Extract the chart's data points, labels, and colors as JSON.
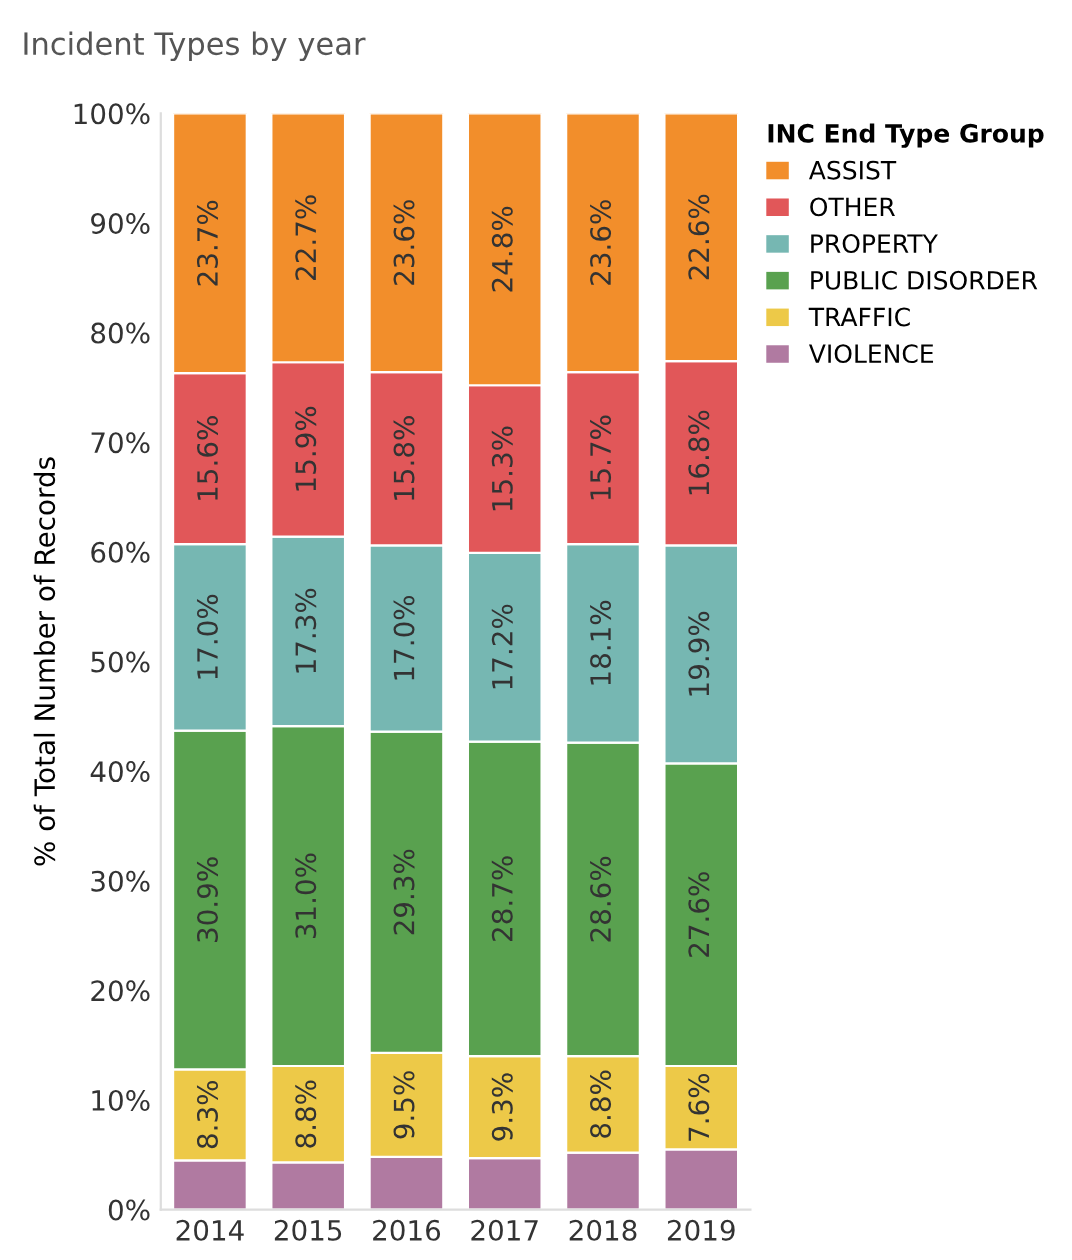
{
  "chart_data": {
    "type": "bar",
    "stacked": true,
    "title": "Incident Types by year",
    "ylabel": "% of Total Number of Records",
    "legend_title": "INC End Type Group",
    "legend": "top right",
    "categories": [
      "2014",
      "2015",
      "2016",
      "2017",
      "2018",
      "2019"
    ],
    "ylim": [
      0,
      100
    ],
    "yticks": [
      {
        "value": 0,
        "label": "0%"
      },
      {
        "value": 10,
        "label": "10%"
      },
      {
        "value": 20,
        "label": "20%"
      },
      {
        "value": 30,
        "label": "30%"
      },
      {
        "value": 40,
        "label": "40%"
      },
      {
        "value": 50,
        "label": "50%"
      },
      {
        "value": 60,
        "label": "60%"
      },
      {
        "value": 70,
        "label": "70%"
      },
      {
        "value": 80,
        "label": "80%"
      },
      {
        "value": 90,
        "label": "90%"
      },
      {
        "value": 100,
        "label": "100%"
      }
    ],
    "series": [
      {
        "name": "VIOLENCE",
        "color": "#b07aa1",
        "values": [
          4.5,
          4.3,
          4.8,
          4.7,
          5.2,
          5.5
        ],
        "value_labels": [
          null,
          null,
          null,
          null,
          null,
          null
        ]
      },
      {
        "name": "TRAFFIC",
        "color": "#edc948",
        "values": [
          8.3,
          8.8,
          9.5,
          9.3,
          8.8,
          7.6
        ],
        "value_labels": [
          "8.3%",
          "8.8%",
          "9.5%",
          "9.3%",
          "8.8%",
          "7.6%"
        ]
      },
      {
        "name": "PUBLIC DISORDER",
        "color": "#59a14f",
        "values": [
          30.9,
          31.0,
          29.3,
          28.7,
          28.6,
          27.6
        ],
        "value_labels": [
          "30.9%",
          "31.0%",
          "29.3%",
          "28.7%",
          "28.6%",
          "27.6%"
        ]
      },
      {
        "name": "PROPERTY",
        "color": "#76b7b2",
        "values": [
          17.0,
          17.3,
          17.0,
          17.2,
          18.1,
          19.9
        ],
        "value_labels": [
          "17.0%",
          "17.3%",
          "17.0%",
          "17.2%",
          "18.1%",
          "19.9%"
        ]
      },
      {
        "name": "OTHER",
        "color": "#e15759",
        "values": [
          15.6,
          15.9,
          15.8,
          15.3,
          15.7,
          16.8
        ],
        "value_labels": [
          "15.6%",
          "15.9%",
          "15.8%",
          "15.3%",
          "15.7%",
          "16.8%"
        ]
      },
      {
        "name": "ASSIST",
        "color": "#f28e2b",
        "values": [
          23.7,
          22.7,
          23.6,
          24.8,
          23.6,
          22.6
        ],
        "value_labels": [
          "23.7%",
          "22.7%",
          "23.6%",
          "24.8%",
          "23.6%",
          "22.6%"
        ]
      }
    ]
  }
}
